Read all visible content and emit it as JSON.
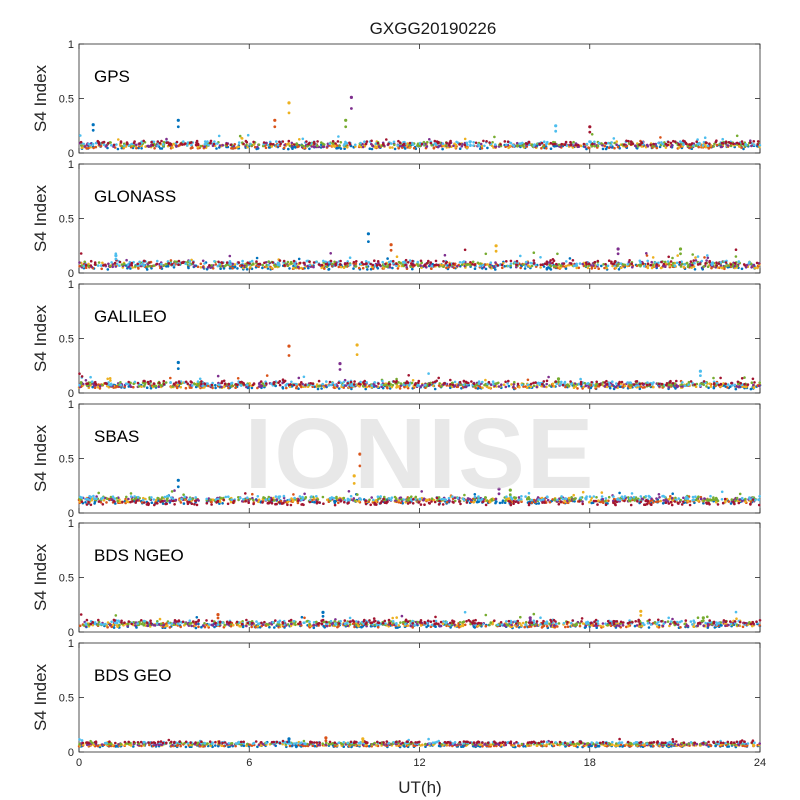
{
  "chart_data": {
    "type": "scatter",
    "title": "GXGG20190226",
    "xlabel": "UT(h)",
    "ylabel": "S4 Index",
    "xlim": [
      0,
      24
    ],
    "ylim": [
      0,
      1
    ],
    "xticks": [
      "0",
      "6",
      "12",
      "18",
      "24"
    ],
    "yticks": [
      "0",
      "0.5",
      "1"
    ],
    "watermark": "IONISE",
    "colors": [
      "#0072bd",
      "#d95319",
      "#edb120",
      "#7e2f8e",
      "#77ac30",
      "#4dbeee",
      "#a2142f"
    ],
    "panels": [
      {
        "label": "GPS",
        "baseline": 0.07,
        "noise": 0.04,
        "spikes": [
          {
            "x": 3.5,
            "y": 0.3
          },
          {
            "x": 6.9,
            "y": 0.3
          },
          {
            "x": 7.4,
            "y": 0.46
          },
          {
            "x": 9.6,
            "y": 0.51
          },
          {
            "x": 9.4,
            "y": 0.3
          },
          {
            "x": 16.8,
            "y": 0.25
          },
          {
            "x": 18.0,
            "y": 0.24
          },
          {
            "x": 0.5,
            "y": 0.26
          }
        ]
      },
      {
        "label": "GLONASS",
        "baseline": 0.07,
        "noise": 0.05,
        "spikes": [
          {
            "x": 10.2,
            "y": 0.36
          },
          {
            "x": 11.0,
            "y": 0.26
          },
          {
            "x": 14.7,
            "y": 0.25
          },
          {
            "x": 19.0,
            "y": 0.22
          },
          {
            "x": 21.2,
            "y": 0.22
          },
          {
            "x": 1.3,
            "y": 0.16
          }
        ]
      },
      {
        "label": "GALILEO",
        "baseline": 0.07,
        "noise": 0.04,
        "spikes": [
          {
            "x": 3.5,
            "y": 0.28
          },
          {
            "x": 7.4,
            "y": 0.43
          },
          {
            "x": 9.8,
            "y": 0.44
          },
          {
            "x": 9.2,
            "y": 0.27
          },
          {
            "x": 16.9,
            "y": 0.13
          },
          {
            "x": 21.9,
            "y": 0.2
          }
        ]
      },
      {
        "label": "SBAS",
        "baseline": 0.12,
        "noise": 0.04,
        "spikes": [
          {
            "x": 3.5,
            "y": 0.3
          },
          {
            "x": 9.9,
            "y": 0.54
          },
          {
            "x": 9.7,
            "y": 0.34
          },
          {
            "x": 14.8,
            "y": 0.22
          },
          {
            "x": 15.2,
            "y": 0.21
          }
        ]
      },
      {
        "label": "BDS NGEO",
        "baseline": 0.07,
        "noise": 0.04,
        "spikes": [
          {
            "x": 8.6,
            "y": 0.18
          },
          {
            "x": 4.9,
            "y": 0.16
          },
          {
            "x": 19.8,
            "y": 0.19
          },
          {
            "x": 15.9,
            "y": 0.13
          },
          {
            "x": 22.0,
            "y": 0.13
          }
        ]
      },
      {
        "label": "BDS GEO",
        "baseline": 0.07,
        "noise": 0.015,
        "spikes": [
          {
            "x": 7.4,
            "y": 0.12
          },
          {
            "x": 8.7,
            "y": 0.13
          },
          {
            "x": 10.0,
            "y": 0.12
          }
        ]
      }
    ]
  }
}
